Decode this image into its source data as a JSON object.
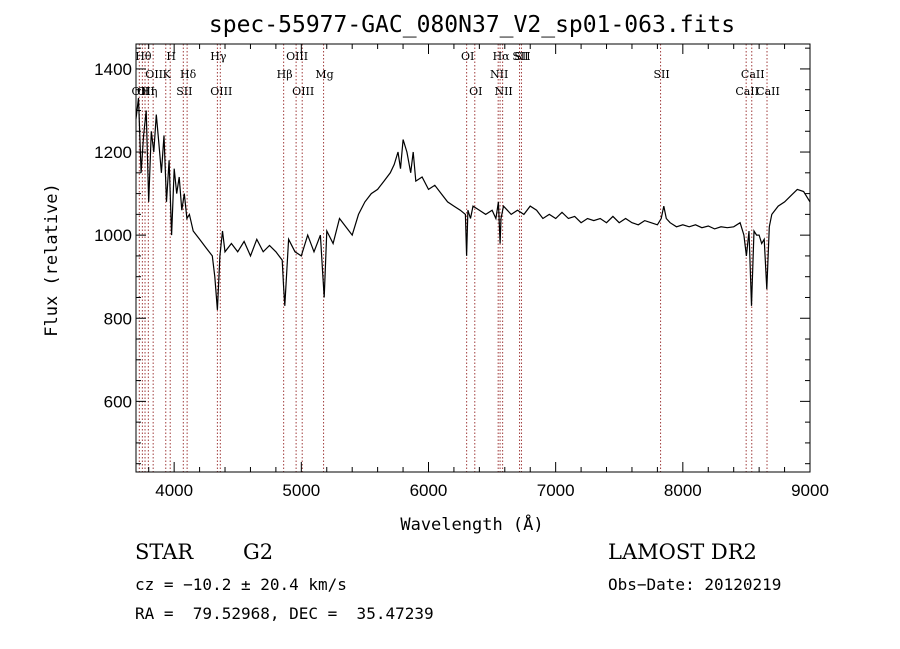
{
  "chart_data": {
    "type": "line",
    "title": "spec-55977-GAC_080N37_V2_sp01-063.fits",
    "xlabel": "Wavelength (Å)",
    "ylabel": "Flux (relative)",
    "xlim": [
      3700,
      9000
    ],
    "ylim": [
      430,
      1460
    ],
    "x_ticks": [
      4000,
      5000,
      6000,
      7000,
      8000,
      9000
    ],
    "y_ticks": [
      600,
      800,
      1000,
      1200,
      1400
    ],
    "x_tick_labels": [
      "4000",
      "5000",
      "6000",
      "7000",
      "8000",
      "9000"
    ],
    "y_tick_labels": [
      "600",
      "800",
      "1000",
      "1200",
      "1400"
    ],
    "grid": false,
    "line_color": "#000000",
    "marker_color": "#a03c3c",
    "series": [
      {
        "x": [
          3700,
          3720,
          3740,
          3760,
          3780,
          3800,
          3820,
          3840,
          3860,
          3880,
          3900,
          3920,
          3940,
          3960,
          3980,
          4000,
          4020,
          4040,
          4060,
          4080,
          4100,
          4120,
          4150,
          4200,
          4250,
          4300,
          4320,
          4340,
          4360,
          4380,
          4400,
          4450,
          4500,
          4550,
          4600,
          4650,
          4700,
          4750,
          4800,
          4850,
          4860,
          4870,
          4900,
          4950,
          5000,
          5050,
          5100,
          5150,
          5170,
          5180,
          5200,
          5250,
          5300,
          5350,
          5400,
          5450,
          5500,
          5550,
          5600,
          5650,
          5700,
          5730,
          5760,
          5780,
          5800,
          5830,
          5860,
          5880,
          5900,
          5950,
          6000,
          6050,
          6100,
          6150,
          6200,
          6250,
          6290,
          6300,
          6310,
          6330,
          6350,
          6400,
          6450,
          6500,
          6530,
          6550,
          6563,
          6570,
          6590,
          6620,
          6650,
          6700,
          6750,
          6800,
          6850,
          6900,
          6950,
          7000,
          7050,
          7100,
          7150,
          7200,
          7250,
          7300,
          7350,
          7400,
          7450,
          7500,
          7550,
          7600,
          7650,
          7700,
          7750,
          7800,
          7830,
          7850,
          7870,
          7900,
          7950,
          8000,
          8050,
          8100,
          8150,
          8200,
          8250,
          8300,
          8350,
          8400,
          8450,
          8480,
          8500,
          8520,
          8540,
          8560,
          8580,
          8600,
          8620,
          8640,
          8660,
          8680,
          8700,
          8750,
          8800,
          8850,
          8900,
          8950,
          9000
        ],
        "y": [
          1280,
          1330,
          1150,
          1240,
          1300,
          1080,
          1250,
          1200,
          1290,
          1220,
          1150,
          1240,
          1080,
          1180,
          1000,
          1160,
          1100,
          1140,
          1060,
          1100,
          1040,
          1050,
          1010,
          990,
          970,
          950,
          900,
          820,
          950,
          1010,
          960,
          980,
          960,
          985,
          950,
          990,
          960,
          975,
          960,
          940,
          880,
          830,
          990,
          960,
          950,
          1000,
          960,
          1000,
          900,
          850,
          1010,
          980,
          1040,
          1020,
          1000,
          1050,
          1080,
          1100,
          1110,
          1130,
          1150,
          1170,
          1200,
          1160,
          1230,
          1200,
          1150,
          1200,
          1130,
          1140,
          1110,
          1120,
          1100,
          1080,
          1070,
          1060,
          1050,
          950,
          1060,
          1040,
          1070,
          1060,
          1050,
          1060,
          1040,
          1080,
          980,
          1040,
          1070,
          1060,
          1050,
          1060,
          1050,
          1070,
          1060,
          1040,
          1050,
          1040,
          1055,
          1040,
          1045,
          1030,
          1040,
          1035,
          1040,
          1030,
          1045,
          1030,
          1040,
          1030,
          1025,
          1035,
          1030,
          1025,
          1040,
          1070,
          1040,
          1030,
          1020,
          1025,
          1020,
          1025,
          1018,
          1022,
          1015,
          1020,
          1018,
          1020,
          1030,
          1000,
          950,
          1010,
          830,
          1010,
          1000,
          1000,
          980,
          990,
          870,
          1020,
          1050,
          1070,
          1080,
          1095,
          1110,
          1105,
          1080
        ]
      }
    ],
    "line_markers": [
      {
        "w": 3726,
        "label": "OII",
        "row": 3
      },
      {
        "w": 3750,
        "label": "Hθ",
        "row": 1
      },
      {
        "w": 3771,
        "label": "OII",
        "row": 3
      },
      {
        "w": 3797,
        "label": "Hη",
        "row": 3
      },
      {
        "w": 3835,
        "label": "OII",
        "row": 2
      },
      {
        "w": 3934,
        "label": "K",
        "row": 2
      },
      {
        "w": 3969,
        "label": "H",
        "row": 1
      },
      {
        "w": 4072,
        "label": "SII",
        "row": 3
      },
      {
        "w": 4102,
        "label": "Hδ",
        "row": 2
      },
      {
        "w": 4340,
        "label": "Hγ",
        "row": 1
      },
      {
        "w": 4363,
        "label": "OIII",
        "row": 3
      },
      {
        "w": 4861,
        "label": "Hβ",
        "row": 2
      },
      {
        "w": 4959,
        "label": "OIII",
        "row": 1
      },
      {
        "w": 5007,
        "label": "OIII",
        "row": 3
      },
      {
        "w": 5175,
        "label": "Mg",
        "row": 2
      },
      {
        "w": 6300,
        "label": "OI",
        "row": 1
      },
      {
        "w": 6364,
        "label": "OI",
        "row": 3
      },
      {
        "w": 6548,
        "label": "NII",
        "row": 2
      },
      {
        "w": 6563,
        "label": "Hα",
        "row": 1
      },
      {
        "w": 6583,
        "label": "NII",
        "row": 3
      },
      {
        "w": 6716,
        "label": "SII",
        "row": 1
      },
      {
        "w": 6731,
        "label": "SII",
        "row": 1
      },
      {
        "w": 7825,
        "label": "SII",
        "row": 2
      },
      {
        "w": 8498,
        "label": "CaII",
        "row": 3
      },
      {
        "w": 8542,
        "label": "CaII",
        "row": 2
      },
      {
        "w": 8662,
        "label": "CaII",
        "row": 3
      }
    ]
  },
  "info": {
    "class": "STAR",
    "subclass": "G2",
    "survey": "LAMOST DR2",
    "cz": "cz = −10.2 ± 20.4 km/s",
    "obs_date": "Obs−Date: 20120219",
    "coords": "RA =  79.52968, DEC =  35.47239"
  }
}
